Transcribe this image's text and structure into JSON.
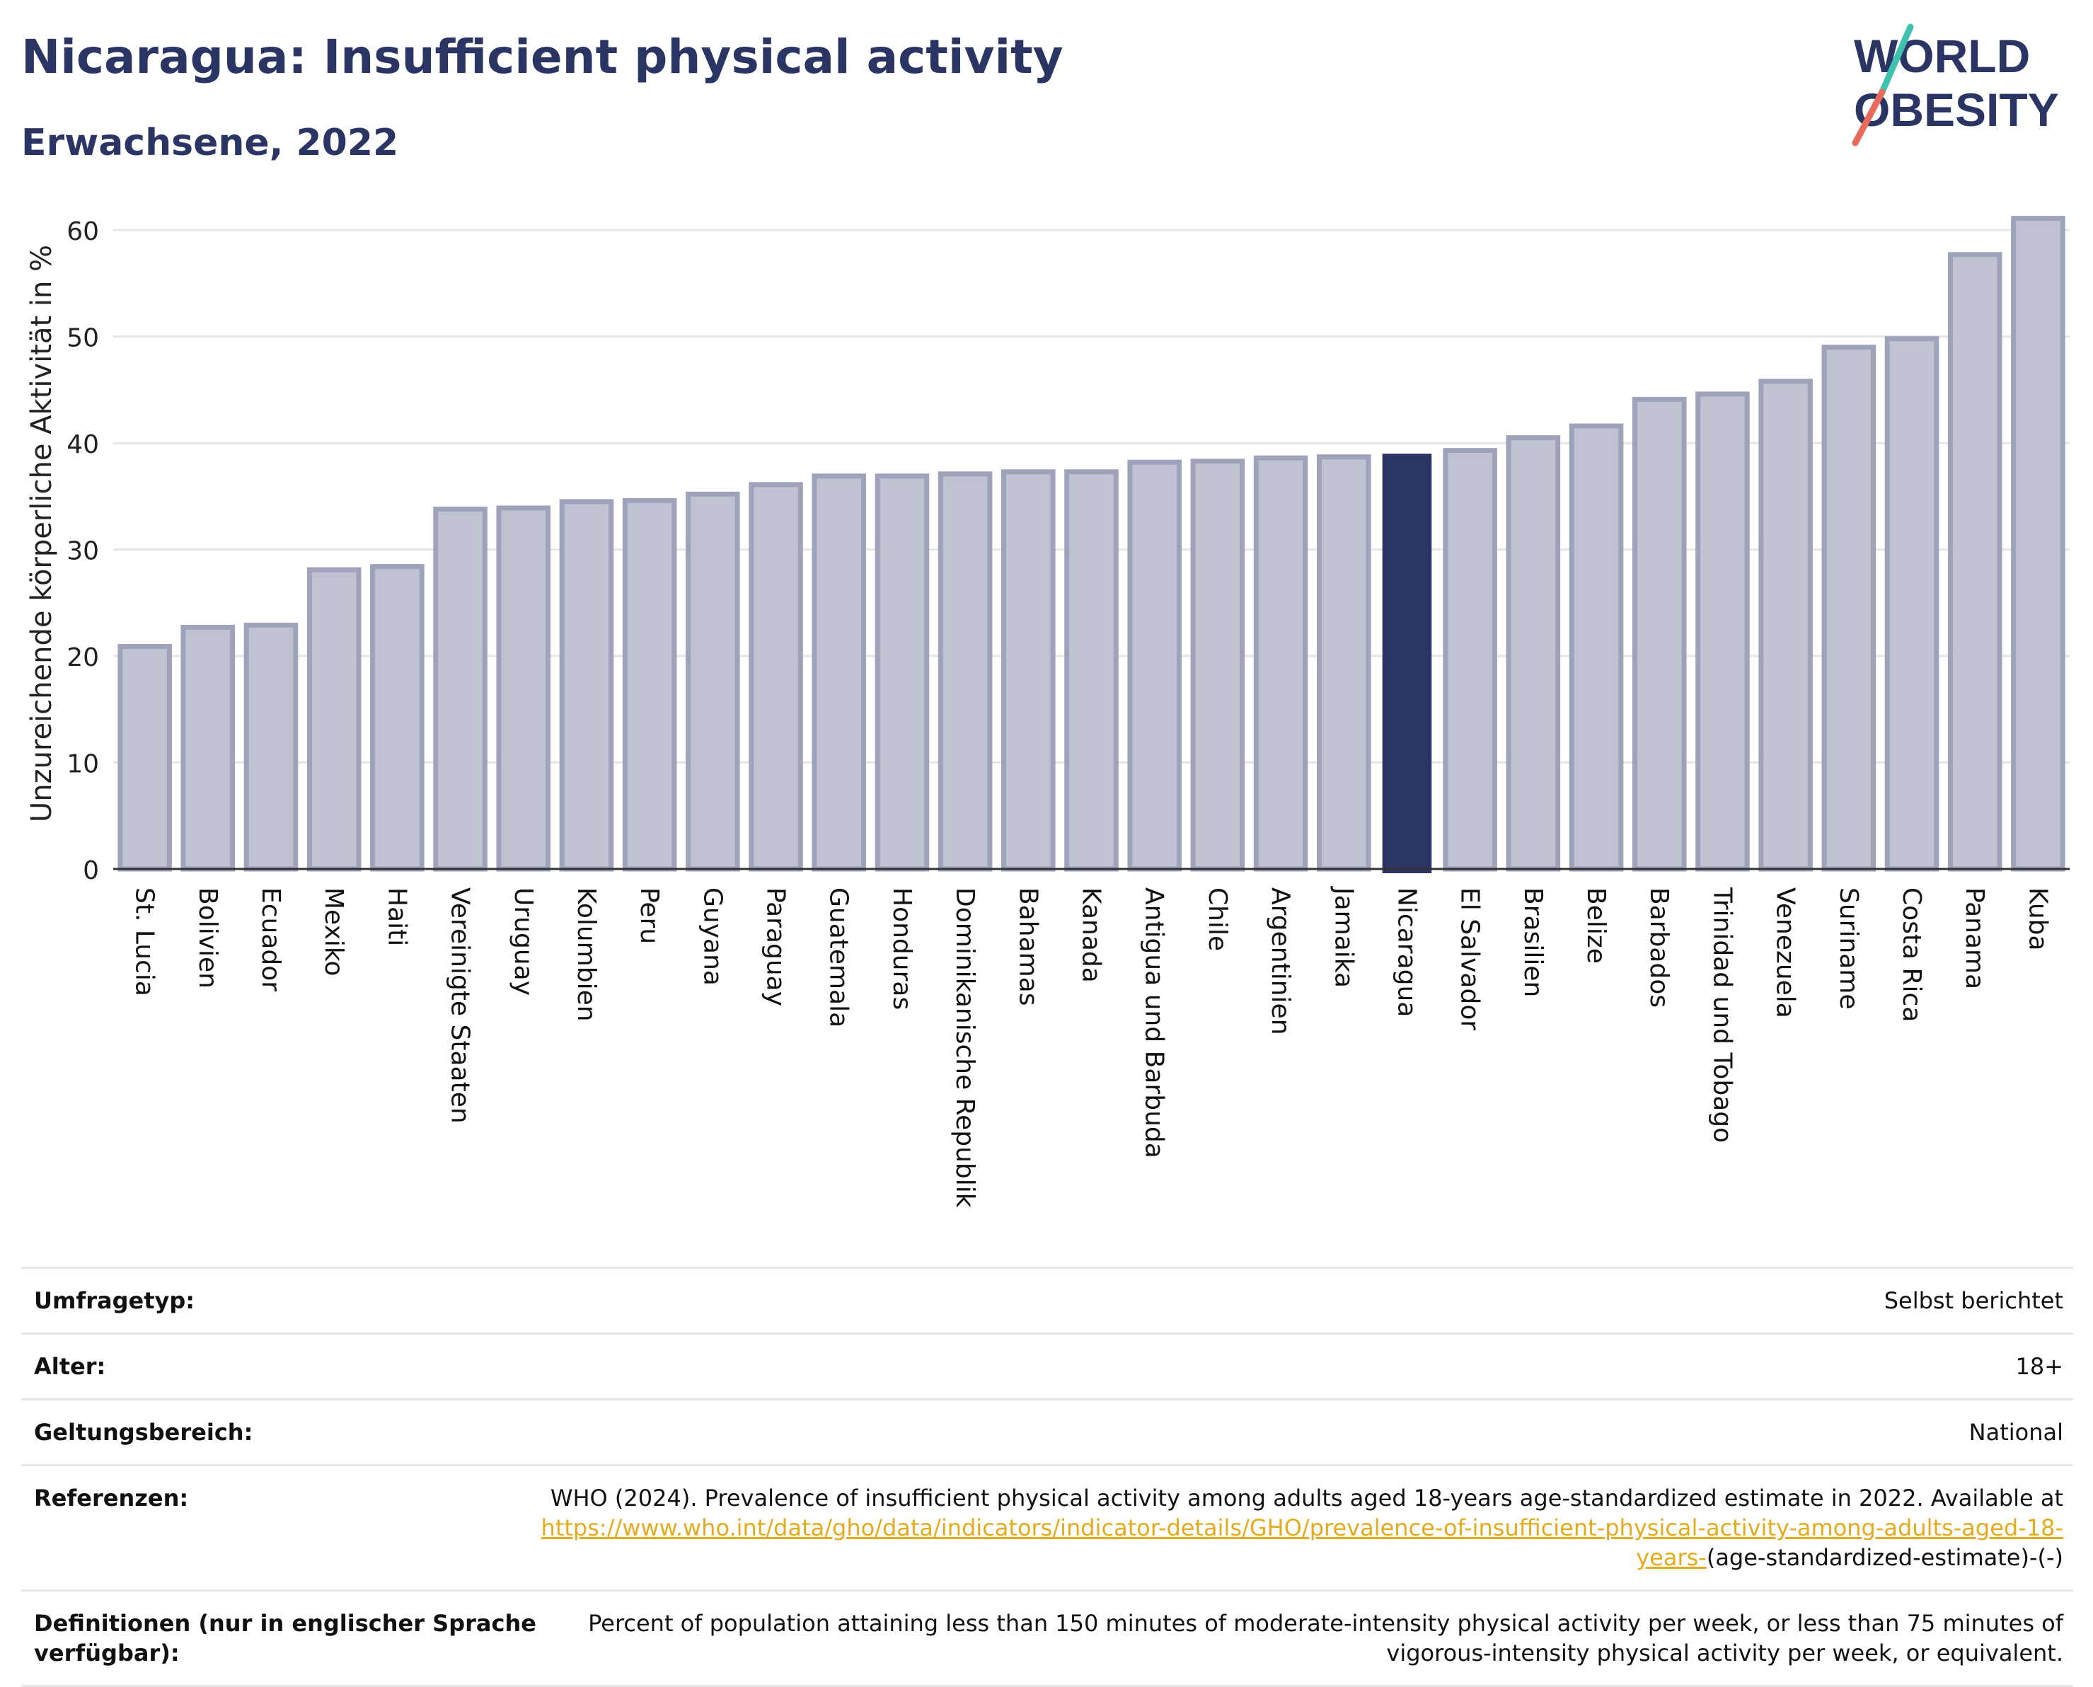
{
  "header": {
    "title": "Nicaragua: Insufficient physical activity",
    "subtitle": "Erwachsene, 2022",
    "logo_line1": "WORLD",
    "logo_line2": "OBESITY"
  },
  "colors": {
    "title": "#2b3564",
    "bar_default": "#bfc2d0",
    "bar_default_border": "#9ea3bb",
    "bar_highlight": "#2b3564",
    "link": "#e4ab1e",
    "logo_teal": "#3fc1b0",
    "logo_coral": "#e86a5c"
  },
  "chart_data": {
    "type": "bar",
    "ylabel": "Unzureichende körperliche Aktivität in %",
    "ylim": [
      0,
      63
    ],
    "yticks": [
      0,
      10,
      20,
      30,
      40,
      50,
      60
    ],
    "grid": true,
    "highlight": "Nicaragua",
    "categories": [
      "St. Lucia",
      "Bolivien",
      "Ecuador",
      "Mexiko",
      "Haiti",
      "Vereinigte Staaten",
      "Uruguay",
      "Kolumbien",
      "Peru",
      "Guyana",
      "Paraguay",
      "Guatemala",
      "Honduras",
      "Dominikanische Republik",
      "Bahamas",
      "Kanada",
      "Antigua und Barbuda",
      "Chile",
      "Argentinien",
      "Jamaika",
      "Nicaragua",
      "El Salvador",
      "Brasilien",
      "Belize",
      "Barbados",
      "Trinidad und Tobago",
      "Venezuela",
      "Suriname",
      "Costa Rica",
      "Panama",
      "Kuba"
    ],
    "values": [
      20.9,
      22.7,
      22.9,
      28.1,
      28.4,
      33.8,
      33.9,
      34.5,
      34.6,
      35.2,
      36.1,
      36.9,
      36.9,
      37.1,
      37.3,
      37.3,
      38.2,
      38.3,
      38.6,
      38.7,
      39.0,
      39.3,
      40.5,
      41.6,
      44.1,
      44.6,
      45.8,
      49.0,
      49.8,
      57.7,
      61.1
    ]
  },
  "meta": [
    {
      "key": "Umfragetyp:",
      "value": "Selbst berichtet"
    },
    {
      "key": "Alter:",
      "value": "18+"
    },
    {
      "key": "Geltungsbereich:",
      "value": "National"
    }
  ],
  "references": {
    "key": "Referenzen:",
    "text": "WHO (2024). Prevalence of insufficient physical activity among adults aged 18-years age-standardized estimate in 2022. Available at",
    "link": "https://www.who.int/data/gho/data/indicators/indicator-details/GHO/prevalence-of-insufficient-physical-activity-among-adults-aged-18-years-",
    "suffix": "(age-standardized-estimate)-(-)"
  },
  "definitions": {
    "key": "Definitionen (nur in englischer Sprache verfügbar):",
    "value": "Percent of population attaining less than 150 minutes of moderate-intensity physical activity per week, or less than 75 minutes of vigorous-intensity physical activity per week, or equivalent."
  }
}
